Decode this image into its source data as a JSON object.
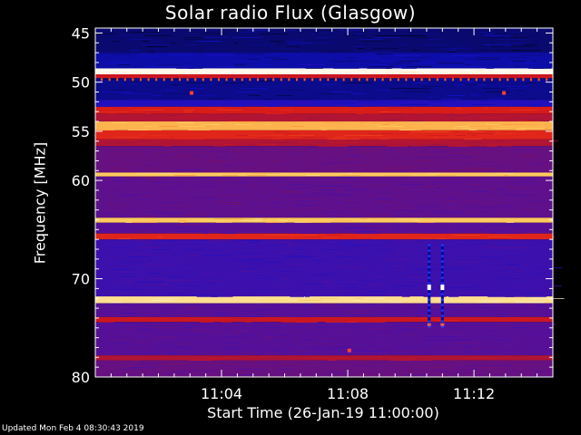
{
  "chart_data": {
    "type": "heatmap",
    "title": "Solar radio Flux (Glasgow)",
    "xlabel": "Start Time (26-Jan-19 11:00:00)",
    "ylabel": "Frequency [MHz]",
    "x_unit": "minutes after 11:00",
    "xlim": [
      0,
      14.5
    ],
    "ylim": [
      80,
      44.5
    ],
    "x_ticks": [
      {
        "value": 4,
        "label": "11:04"
      },
      {
        "value": 8,
        "label": "11:08"
      },
      {
        "value": 12,
        "label": "11:12"
      }
    ],
    "y_ticks": [
      {
        "value": 45,
        "label": "45"
      },
      {
        "value": 50,
        "label": "50"
      },
      {
        "value": 55,
        "label": "55"
      },
      {
        "value": 60,
        "label": "60"
      },
      {
        "value": 70,
        "label": "70"
      },
      {
        "value": 80,
        "label": "80"
      }
    ],
    "colormap": [
      "#000000",
      "#1010c8",
      "#5010a0",
      "#8a1050",
      "#d81818",
      "#ff6020",
      "#ffd060",
      "#ffffff"
    ],
    "frequency_bands": [
      {
        "from": 44.5,
        "to": 47.0,
        "level": 0.08
      },
      {
        "from": 47.0,
        "to": 48.6,
        "level": 0.12
      },
      {
        "from": 48.6,
        "to": 49.2,
        "level": 0.98
      },
      {
        "from": 49.2,
        "to": 49.6,
        "level": 0.55
      },
      {
        "from": 49.6,
        "to": 51.8,
        "level": 0.1
      },
      {
        "from": 51.8,
        "to": 52.5,
        "level": 0.18
      },
      {
        "from": 52.5,
        "to": 53.2,
        "level": 0.58
      },
      {
        "from": 53.2,
        "to": 54.0,
        "level": 0.5
      },
      {
        "from": 54.0,
        "to": 54.9,
        "level": 0.82
      },
      {
        "from": 54.9,
        "to": 55.8,
        "level": 0.6
      },
      {
        "from": 55.8,
        "to": 56.5,
        "level": 0.5
      },
      {
        "from": 56.5,
        "to": 59.2,
        "level": 0.34
      },
      {
        "from": 59.2,
        "to": 59.6,
        "level": 0.85
      },
      {
        "from": 59.6,
        "to": 63.8,
        "level": 0.32
      },
      {
        "from": 63.8,
        "to": 64.3,
        "level": 0.85
      },
      {
        "from": 64.3,
        "to": 65.4,
        "level": 0.3
      },
      {
        "from": 65.4,
        "to": 66.0,
        "level": 0.6
      },
      {
        "from": 66.0,
        "to": 71.8,
        "level": 0.24
      },
      {
        "from": 71.8,
        "to": 72.5,
        "level": 0.9
      },
      {
        "from": 72.5,
        "to": 73.9,
        "level": 0.3
      },
      {
        "from": 73.9,
        "to": 74.4,
        "level": 0.55
      },
      {
        "from": 74.4,
        "to": 77.8,
        "level": 0.3
      },
      {
        "from": 77.8,
        "to": 78.3,
        "level": 0.5
      },
      {
        "from": 78.3,
        "to": 80.0,
        "level": 0.34
      }
    ],
    "vertical_bursts": [
      {
        "t": 10.58,
        "f_from": 66.5,
        "f_to": 74.8
      },
      {
        "t": 11.0,
        "f_from": 66.5,
        "f_to": 74.8
      }
    ],
    "spots": [
      {
        "t": 3.05,
        "f": 51.1
      },
      {
        "t": 12.95,
        "f": 51.1
      },
      {
        "t": 8.05,
        "f": 77.3
      }
    ]
  },
  "footer_text": "Updated Mon Feb  4 08:30:43 2019"
}
